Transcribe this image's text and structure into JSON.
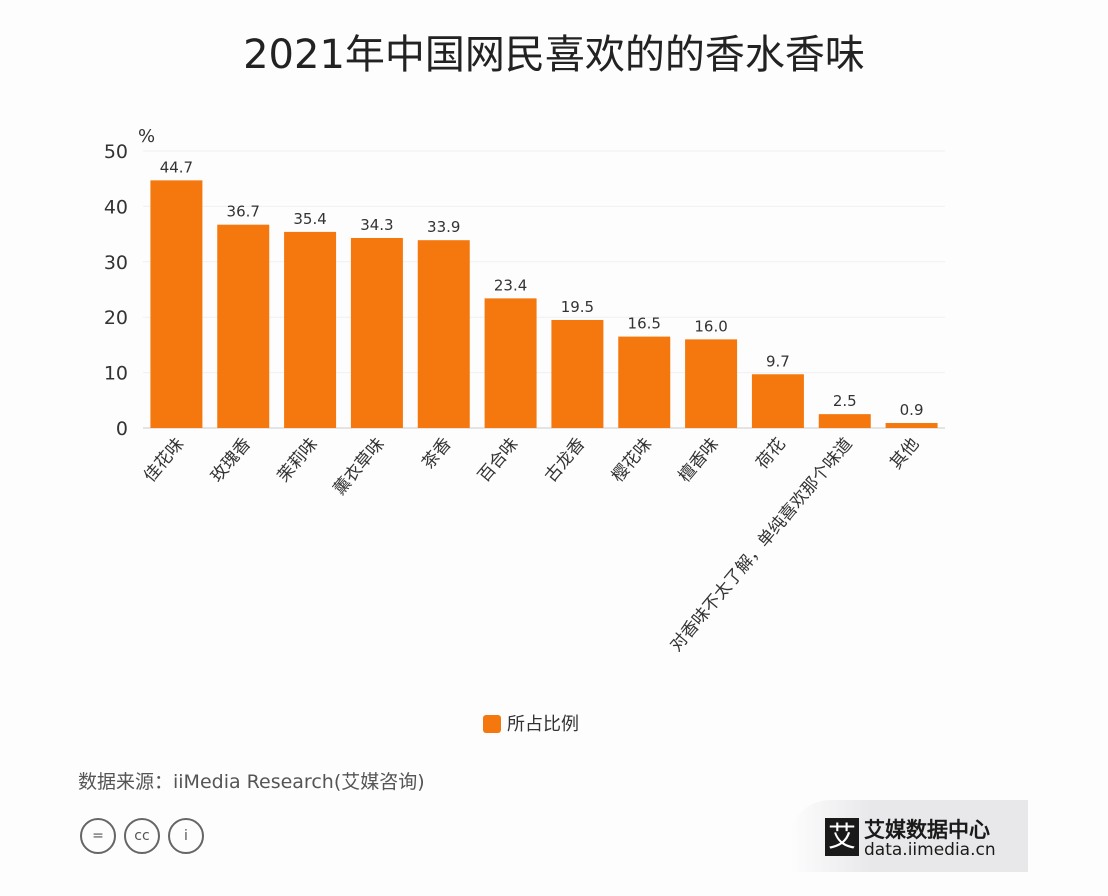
{
  "chart_data": {
    "type": "bar",
    "title": "2021年中国网民喜欢的的香水香味",
    "ylabel": "%",
    "ylim": [
      0,
      50
    ],
    "yticks": [
      0,
      10,
      20,
      30,
      40,
      50
    ],
    "grid": true,
    "legend_position": "bottom",
    "categories": [
      "佳花味",
      "玫瑰香",
      "茉莉味",
      "薰衣草味",
      "茶香",
      "百合味",
      "古龙香",
      "樱花味",
      "檀香味",
      "荷花",
      "对香味不太了解，单纯喜欢那个味道",
      "其他"
    ],
    "series": [
      {
        "name": "所占比例",
        "values": [
          44.7,
          36.7,
          35.4,
          34.3,
          33.9,
          23.4,
          19.5,
          16.5,
          16.0,
          9.7,
          2.5,
          0.9
        ],
        "labels": [
          "44.7",
          "36.7",
          "35.4",
          "34.3",
          "33.9",
          "23.4",
          "19.5",
          "16.5",
          "16.0",
          "9.7",
          "2.5",
          "0.9"
        ],
        "color": "#f5780f"
      }
    ]
  },
  "footer": {
    "source": "数据来源：iiMedia Research(艾媒咨询)",
    "license_icons": [
      "nd-icon",
      "cc-icon",
      "by-icon"
    ],
    "license_glyphs": [
      "=",
      "cc",
      "i"
    ],
    "logo_mark": "艾",
    "logo_name": "艾媒数据中心",
    "logo_url": "data.iimedia.cn"
  }
}
